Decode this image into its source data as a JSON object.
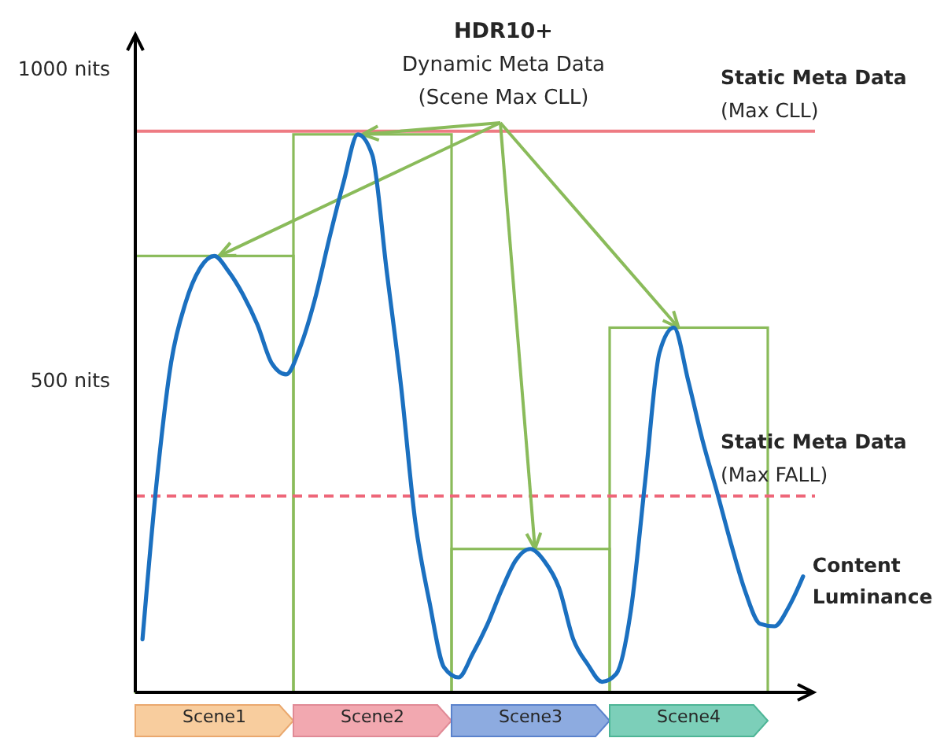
{
  "chart_data": [
    {
      "type": "bar",
      "annotations": [
        {
          "text": "HDR10+\nDynamic Meta Data\n(Scene Max CLL)",
          "x": "Scene2",
          "y": 895
        }
      ],
      "categories": [
        "Scene1",
        "Scene2",
        "Scene3",
        "Scene4"
      ],
      "values": [
        700,
        895,
        230,
        585
      ],
      "color": "#8abb5a",
      "ylim": [
        0,
        1050
      ],
      "yticks": [
        {
          "value": 1000,
          "label": "1000 nits"
        },
        {
          "value": 500,
          "label": "500 nits"
        }
      ],
      "ref_lines": [
        {
          "axis": "y",
          "value": 900,
          "label": "Static Meta Data\n(Max CLL)",
          "color": "#ee7b83",
          "line_style": "solid"
        },
        {
          "axis": "y",
          "value": 315,
          "label": "Static Meta Data\n(Max FALL)",
          "color": "#ee6679",
          "line_style": "dashed"
        }
      ]
    },
    {
      "type": "line",
      "categories": [
        null,
        null,
        null,
        null,
        null,
        null,
        null,
        null,
        null,
        null,
        null,
        null,
        null,
        null,
        null,
        null,
        null,
        null,
        null,
        null,
        null,
        null,
        null,
        null,
        null,
        null,
        null,
        null,
        null,
        null,
        null,
        null,
        null,
        null,
        null,
        null,
        null,
        null,
        null,
        null,
        null,
        null,
        null,
        null,
        null,
        null,
        null
      ],
      "series": [
        {
          "name": "Content Luminance",
          "color": "#1b70c0",
          "values": [
            85,
            340,
            530,
            625,
            680,
            700,
            675,
            638,
            590,
            528,
            510,
            555,
            630,
            727,
            818,
            895,
            862,
            677,
            492,
            273,
            143,
            40,
            24,
            62,
            108,
            164,
            212,
            230,
            210,
            168,
            85,
            45,
            17,
            30,
            130,
            338,
            545,
            585,
            500,
            404,
            322,
            237,
            160,
            110,
            106,
            137,
            186
          ]
        }
      ],
      "ylim": [
        0,
        1050
      ],
      "tick_labels": false
    }
  ]
}
